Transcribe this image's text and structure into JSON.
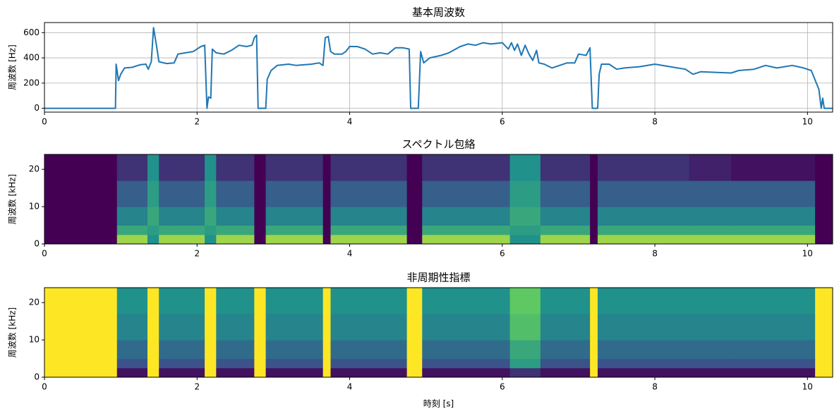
{
  "chart_data": [
    {
      "type": "line",
      "title": "基本周波数",
      "ylabel": "周波数 [Hz]",
      "x": [
        0,
        0.93,
        0.94,
        0.97,
        1.0,
        1.05,
        1.15,
        1.25,
        1.33,
        1.36,
        1.4,
        1.43,
        1.47,
        1.5,
        1.6,
        1.7,
        1.75,
        1.85,
        1.95,
        2.05,
        2.1,
        2.13,
        2.15,
        2.18,
        2.2,
        2.25,
        2.35,
        2.45,
        2.55,
        2.65,
        2.72,
        2.75,
        2.78,
        2.8,
        2.9,
        2.92,
        2.97,
        3.05,
        3.2,
        3.3,
        3.4,
        3.5,
        3.6,
        3.65,
        3.68,
        3.72,
        3.75,
        3.8,
        3.9,
        3.95,
        4.0,
        4.1,
        4.2,
        4.3,
        4.4,
        4.5,
        4.6,
        4.7,
        4.78,
        4.8,
        4.9,
        4.93,
        4.97,
        5.05,
        5.2,
        5.3,
        5.45,
        5.55,
        5.65,
        5.75,
        5.85,
        6.0,
        6.08,
        6.12,
        6.16,
        6.2,
        6.25,
        6.3,
        6.35,
        6.4,
        6.45,
        6.48,
        6.55,
        6.65,
        6.75,
        6.85,
        6.95,
        7.0,
        7.1,
        7.15,
        7.18,
        7.25,
        7.27,
        7.3,
        7.4,
        7.5,
        7.6,
        7.8,
        8.0,
        8.2,
        8.4,
        8.5,
        8.6,
        9.0,
        9.1,
        9.3,
        9.45,
        9.6,
        9.8,
        9.95,
        10.05,
        10.15,
        10.18,
        10.2,
        10.22,
        10.33
      ],
      "values": [
        0,
        0,
        350,
        220,
        270,
        320,
        325,
        345,
        350,
        310,
        370,
        640,
        490,
        370,
        355,
        360,
        430,
        440,
        450,
        490,
        500,
        0,
        90,
        80,
        470,
        440,
        430,
        460,
        500,
        490,
        500,
        560,
        580,
        0,
        0,
        230,
        300,
        340,
        350,
        340,
        345,
        350,
        360,
        340,
        560,
        570,
        450,
        430,
        430,
        450,
        490,
        490,
        470,
        430,
        440,
        430,
        480,
        480,
        470,
        0,
        0,
        450,
        360,
        400,
        420,
        440,
        490,
        510,
        500,
        520,
        510,
        520,
        470,
        520,
        460,
        510,
        420,
        500,
        430,
        380,
        460,
        360,
        350,
        320,
        340,
        360,
        360,
        430,
        420,
        480,
        0,
        0,
        270,
        350,
        350,
        310,
        320,
        330,
        350,
        330,
        310,
        270,
        290,
        280,
        300,
        310,
        340,
        320,
        340,
        320,
        300,
        150,
        0,
        80,
        0,
        0
      ],
      "color": "#1f77b4",
      "xlim": [
        0,
        10.33
      ],
      "xticks": [
        0,
        2,
        4,
        6,
        8,
        10
      ],
      "ylim": [
        -30,
        680
      ],
      "yticks": [
        0,
        200,
        400,
        600
      ],
      "grid": true
    },
    {
      "type": "heatmap",
      "title": "スペクトル包絡",
      "ylabel": "周波数 [kHz]",
      "colormap": "viridis",
      "x": [
        0,
        0.95,
        1.35,
        1.5,
        1.7,
        2.1,
        2.25,
        2.75,
        2.9,
        3.65,
        3.75,
        4.75,
        4.95,
        6.1,
        6.5,
        7.15,
        7.25,
        8.45,
        9.0,
        10.1,
        10.33
      ],
      "bands": [
        0,
        2.5,
        5,
        10,
        17,
        24
      ],
      "values": [
        [
          0,
          0.85,
          0.5,
          0.85,
          0.85,
          0.5,
          0.85,
          0,
          0.85,
          0,
          0.85,
          0,
          0.85,
          0.5,
          0.85,
          0,
          0.85,
          0.85,
          0.85,
          0
        ],
        [
          0,
          0.6,
          0.55,
          0.6,
          0.6,
          0.55,
          0.6,
          0,
          0.6,
          0,
          0.6,
          0,
          0.6,
          0.55,
          0.6,
          0,
          0.6,
          0.6,
          0.6,
          0
        ],
        [
          0,
          0.45,
          0.6,
          0.45,
          0.45,
          0.6,
          0.45,
          0,
          0.45,
          0,
          0.45,
          0,
          0.45,
          0.6,
          0.45,
          0,
          0.45,
          0.45,
          0.45,
          0
        ],
        [
          0,
          0.3,
          0.55,
          0.3,
          0.3,
          0.55,
          0.3,
          0,
          0.3,
          0,
          0.3,
          0,
          0.3,
          0.55,
          0.3,
          0,
          0.3,
          0.3,
          0.3,
          0
        ],
        [
          0,
          0.15,
          0.5,
          0.15,
          0.15,
          0.5,
          0.15,
          0,
          0.15,
          0,
          0.15,
          0,
          0.15,
          0.5,
          0.15,
          0,
          0.15,
          0.1,
          0.05,
          0
        ]
      ],
      "xlim": [
        0,
        10.33
      ],
      "xticks": [
        0,
        2,
        4,
        6,
        8,
        10
      ],
      "ylim": [
        0,
        24
      ],
      "yticks": [
        0,
        10,
        20
      ]
    },
    {
      "type": "heatmap",
      "title": "非周期性指標",
      "ylabel": "周波数 [kHz]",
      "xlabel": "時刻 [s]",
      "colormap": "viridis",
      "x": [
        0,
        0.95,
        1.35,
        1.5,
        1.7,
        2.1,
        2.25,
        2.75,
        2.9,
        3.65,
        3.75,
        4.75,
        4.95,
        6.1,
        6.5,
        7.15,
        7.25,
        8.45,
        9.0,
        10.1,
        10.33
      ],
      "bands": [
        0,
        2.5,
        5,
        10,
        17,
        24
      ],
      "values": [
        [
          1,
          0.05,
          1,
          0.05,
          0.05,
          1,
          0.05,
          1,
          0.05,
          1,
          0.05,
          1,
          0.05,
          0.15,
          0.05,
          1,
          0.05,
          0.05,
          0.05,
          1
        ],
        [
          1,
          0.25,
          1,
          0.25,
          0.25,
          1,
          0.25,
          1,
          0.25,
          1,
          0.25,
          1,
          0.25,
          0.55,
          0.25,
          1,
          0.25,
          0.25,
          0.25,
          1
        ],
        [
          1,
          0.35,
          1,
          0.35,
          0.35,
          1,
          0.35,
          1,
          0.35,
          1,
          0.35,
          1,
          0.35,
          0.6,
          0.35,
          1,
          0.35,
          0.35,
          0.35,
          1
        ],
        [
          1,
          0.45,
          1,
          0.45,
          0.45,
          1,
          0.45,
          1,
          0.45,
          1,
          0.45,
          1,
          0.45,
          0.7,
          0.45,
          1,
          0.45,
          0.45,
          0.45,
          1
        ],
        [
          1,
          0.5,
          1,
          0.5,
          0.5,
          1,
          0.5,
          1,
          0.5,
          1,
          0.5,
          1,
          0.5,
          0.75,
          0.5,
          1,
          0.5,
          0.5,
          0.5,
          1
        ]
      ],
      "xlim": [
        0,
        10.33
      ],
      "xticks": [
        0,
        2,
        4,
        6,
        8,
        10
      ],
      "ylim": [
        0,
        24
      ],
      "yticks": [
        0,
        10,
        20
      ]
    }
  ]
}
